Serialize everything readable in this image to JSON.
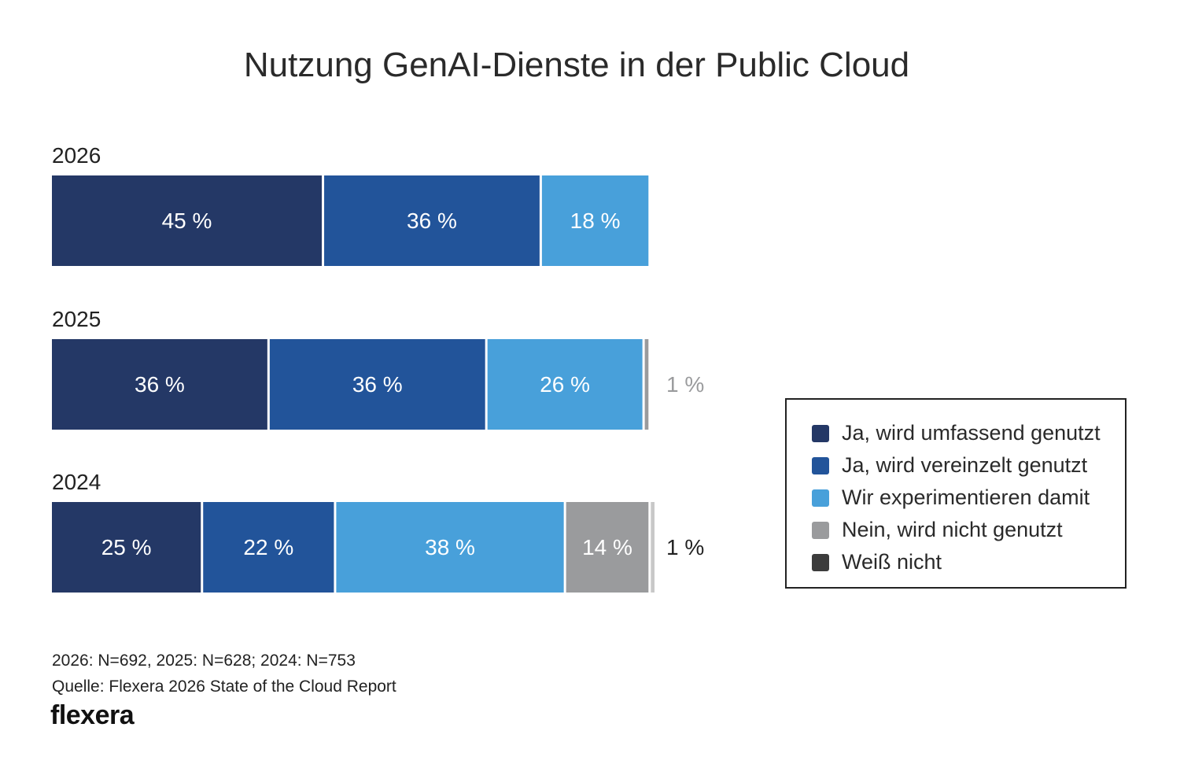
{
  "chart_data": {
    "type": "bar",
    "orientation": "horizontal",
    "stacked": true,
    "title": "Nutzung GenAI-Dienste in der Public Cloud",
    "categories": [
      "2026",
      "2025",
      "2024"
    ],
    "series": [
      {
        "name": "Ja, wird umfassend genutzt",
        "color": "#243866",
        "values": [
          45,
          36,
          25
        ]
      },
      {
        "name": "Ja, wird vereinzelt genutzt",
        "color": "#22549a",
        "values": [
          36,
          36,
          22
        ]
      },
      {
        "name": "Wir experimentieren damit",
        "color": "#48a0da",
        "values": [
          18,
          26,
          38
        ]
      },
      {
        "name": "Nein, wird nicht genutzt",
        "color": "#9a9b9d",
        "values": [
          0,
          1,
          14
        ]
      },
      {
        "name": "Weiß nicht",
        "color": "#3c3c3c",
        "values": [
          0,
          0,
          1
        ]
      }
    ],
    "value_suffix": " %",
    "legend": "right",
    "grid": false
  },
  "footnotes": {
    "sample": "2026: N=692, 2025: N=628; 2024: N=753",
    "source": "Quelle: Flexera 2026 State of the Cloud Report"
  },
  "logo": "flexera"
}
